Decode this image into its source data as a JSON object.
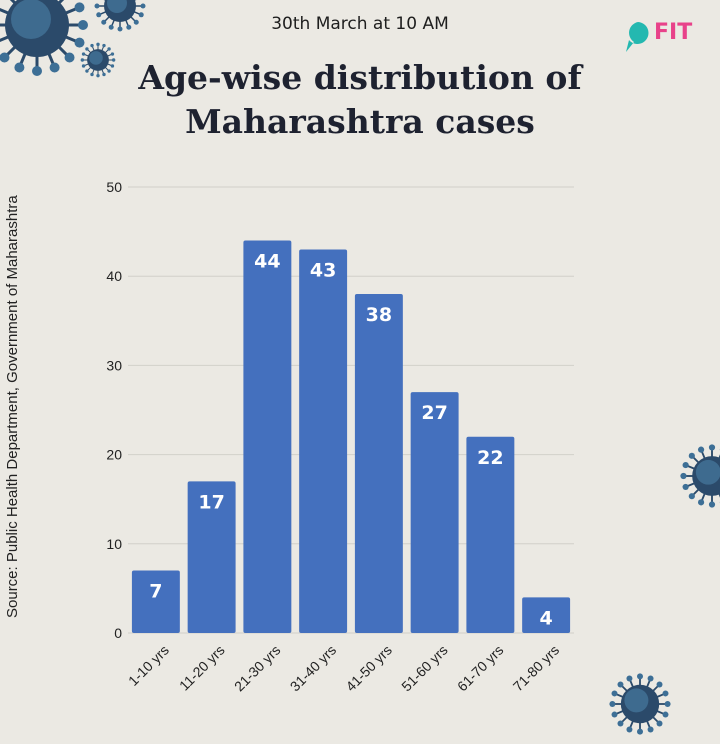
{
  "header": {
    "date_label": "30th March at 10 AM",
    "title_line1": "Age-wise distribution of",
    "title_line2": "Maharashtra cases",
    "logo_text": "FIT"
  },
  "source_text": "Source: Public Health Department, Government of Maharashtra",
  "colors": {
    "bar": "#4470be",
    "background": "#ebe9e3",
    "logo_teal": "#24b8b0",
    "logo_pink": "#e8428a",
    "virus": "#2b4a6a"
  },
  "icons": [
    "virus-icon",
    "fit-logo-icon"
  ],
  "chart_data": {
    "type": "bar",
    "categories": [
      "1-10 yrs",
      "11-20 yrs",
      "21-30 yrs",
      "31-40 yrs",
      "41-50 yrs",
      "51-60 yrs",
      "61-70 yrs",
      "71-80 yrs"
    ],
    "values": [
      7,
      17,
      44,
      43,
      38,
      27,
      22,
      4
    ],
    "title": "Age-wise distribution of Maharashtra cases",
    "xlabel": "",
    "ylabel": "",
    "ylim": [
      0,
      50
    ],
    "yticks": [
      0,
      10,
      20,
      30,
      40,
      50
    ],
    "grid": true,
    "data_labels": true
  }
}
